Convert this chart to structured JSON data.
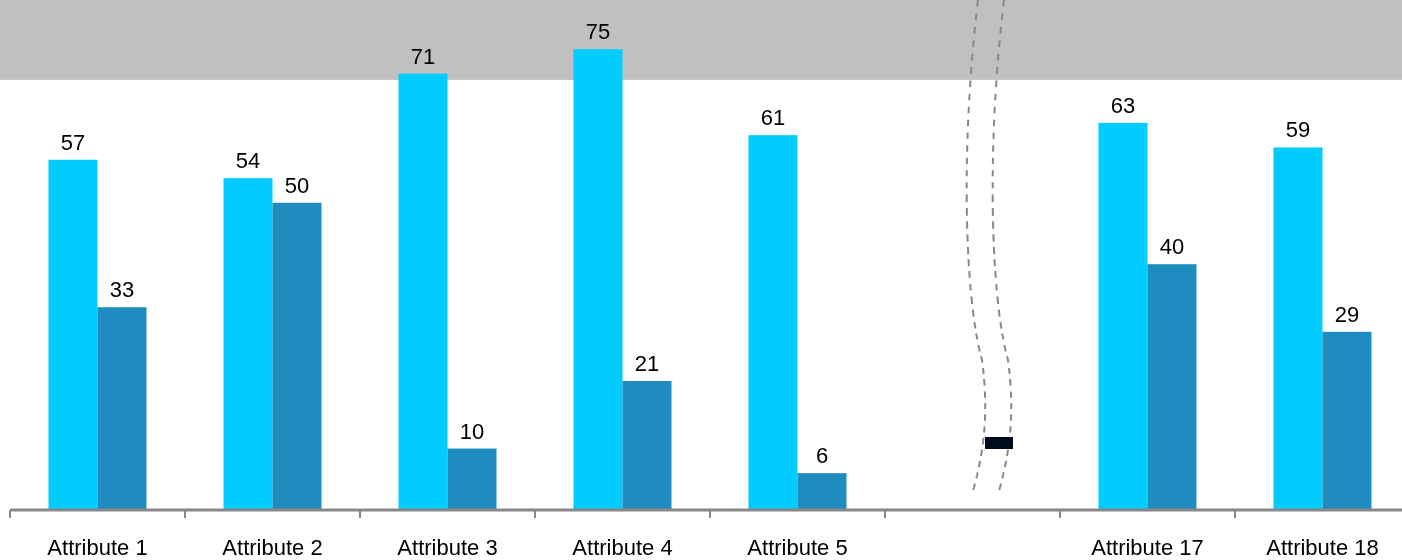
{
  "chart_data": {
    "type": "bar",
    "categories": [
      "Attribute 1",
      "Attribute 2",
      "Attribute 3",
      "Attribute 4",
      "Attribute 5",
      null,
      "Attribute 17",
      "Attribute 18"
    ],
    "series": [
      {
        "color": "#00ccff",
        "values": [
          57,
          54,
          71,
          75,
          61,
          null,
          63,
          59
        ]
      },
      {
        "color": "#1f8bbf",
        "values": [
          33,
          50,
          10,
          21,
          6,
          null,
          40,
          29
        ]
      }
    ],
    "ylim": [
      0,
      83
    ],
    "tick_labels": "x",
    "data_labels": true,
    "bands": [
      {
        "axis": "y",
        "from": 70,
        "to": 83,
        "color": "#c0c0c0"
      }
    ]
  }
}
